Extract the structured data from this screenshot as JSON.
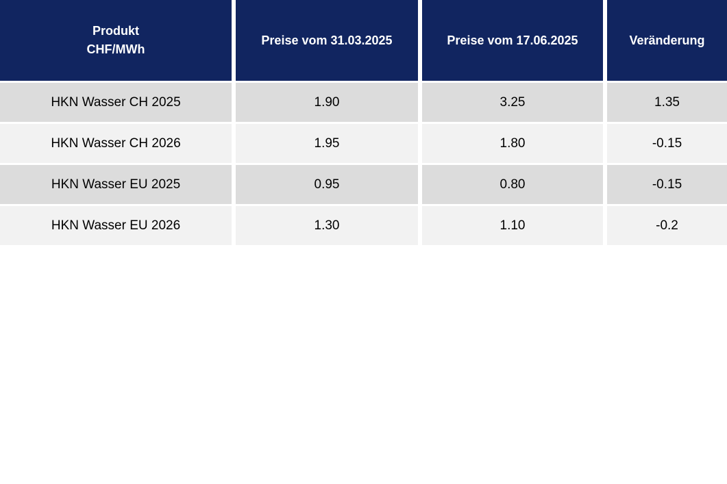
{
  "colors": {
    "header_bg": "#112560",
    "header_text": "#ffffff",
    "row_odd_bg": "#dcdcdc",
    "row_even_bg": "#f2f2f2",
    "body_text": "#000000",
    "page_bg": "#ffffff"
  },
  "header": {
    "product_line1": "Produkt",
    "product_line2": "CHF/MWh",
    "price_old": "Preise vom 31.03.2025",
    "price_new": "Preise vom 17.06.2025",
    "change": "Veränderung"
  },
  "rows": [
    {
      "product": "HKN Wasser CH 2025",
      "price_old": "1.90",
      "price_new": "3.25",
      "change": "1.35"
    },
    {
      "product": "HKN Wasser CH 2026",
      "price_old": "1.95",
      "price_new": "1.80",
      "change": "-0.15"
    },
    {
      "product": "HKN Wasser EU 2025",
      "price_old": "0.95",
      "price_new": "0.80",
      "change": "-0.15"
    },
    {
      "product": "HKN Wasser EU 2026",
      "price_old": "1.30",
      "price_new": "1.10",
      "change": "-0.2"
    }
  ],
  "chart_data": {
    "type": "table",
    "title": "Produkt CHF/MWh",
    "columns": [
      "Produkt CHF/MWh",
      "Preise vom 31.03.2025",
      "Preise vom 17.06.2025",
      "Veränderung"
    ],
    "rows": [
      [
        "HKN Wasser CH 2025",
        1.9,
        3.25,
        1.35
      ],
      [
        "HKN Wasser CH 2026",
        1.95,
        1.8,
        -0.15
      ],
      [
        "HKN Wasser EU 2025",
        0.95,
        0.8,
        -0.15
      ],
      [
        "HKN Wasser EU 2026",
        1.3,
        1.1,
        -0.2
      ]
    ]
  }
}
